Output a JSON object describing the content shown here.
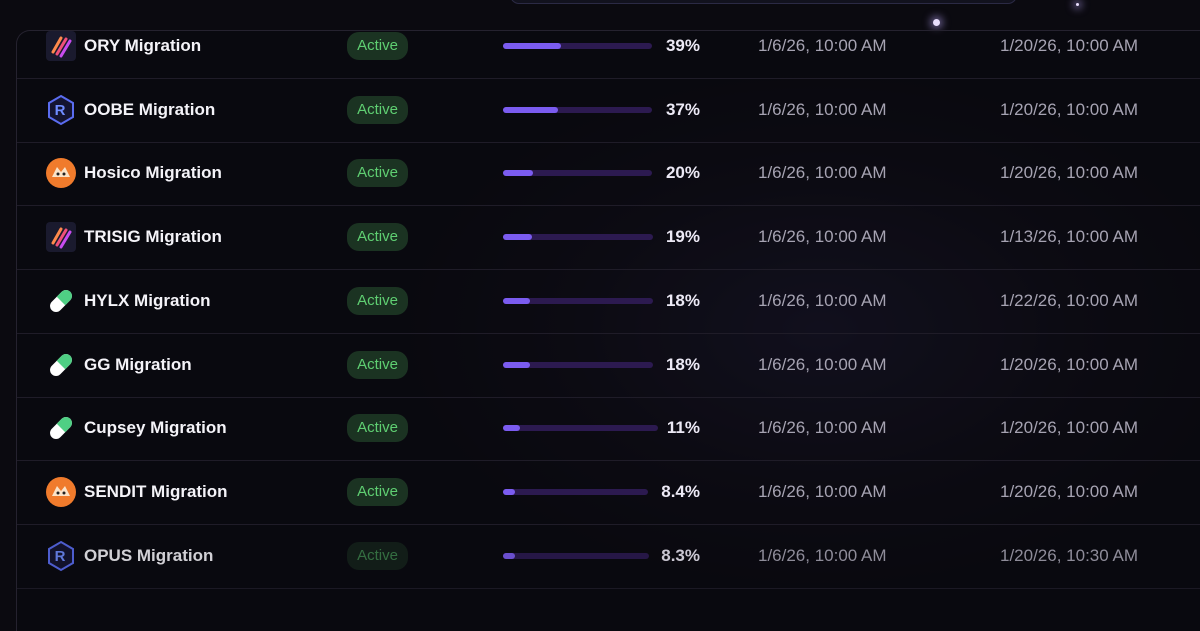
{
  "table": {
    "rows": [
      {
        "name": "ORY Migration",
        "status": "Active",
        "progress": 39,
        "progress_label": "39%",
        "start": "1/6/26, 10:00 AM",
        "end": "1/20/26, 10:00 AM"
      },
      {
        "name": "OOBE Migration",
        "status": "Active",
        "progress": 37,
        "progress_label": "37%",
        "start": "1/6/26, 10:00 AM",
        "end": "1/20/26, 10:00 AM"
      },
      {
        "name": "Hosico Migration",
        "status": "Active",
        "progress": 20,
        "progress_label": "20%",
        "start": "1/6/26, 10:00 AM",
        "end": "1/20/26, 10:00 AM"
      },
      {
        "name": "TRISIG Migration",
        "status": "Active",
        "progress": 19,
        "progress_label": "19%",
        "start": "1/6/26, 10:00 AM",
        "end": "1/13/26, 10:00 AM"
      },
      {
        "name": "HYLX Migration",
        "status": "Active",
        "progress": 18,
        "progress_label": "18%",
        "start": "1/6/26, 10:00 AM",
        "end": "1/22/26, 10:00 AM"
      },
      {
        "name": "GG Migration",
        "status": "Active",
        "progress": 18,
        "progress_label": "18%",
        "start": "1/6/26, 10:00 AM",
        "end": "1/20/26, 10:00 AM"
      },
      {
        "name": "Cupsey Migration",
        "status": "Active",
        "progress": 11,
        "progress_label": "11%",
        "start": "1/6/26, 10:00 AM",
        "end": "1/20/26, 10:00 AM"
      },
      {
        "name": "SENDIT Migration",
        "status": "Active",
        "progress": 8.4,
        "progress_label": "8.4%",
        "start": "1/6/26, 10:00 AM",
        "end": "1/20/26, 10:00 AM"
      },
      {
        "name": "OPUS Migration",
        "status": "Active",
        "progress": 8.3,
        "progress_label": "8.3%",
        "start": "1/6/26, 10:00 AM",
        "end": "1/20/26, 10:30 AM"
      }
    ]
  }
}
